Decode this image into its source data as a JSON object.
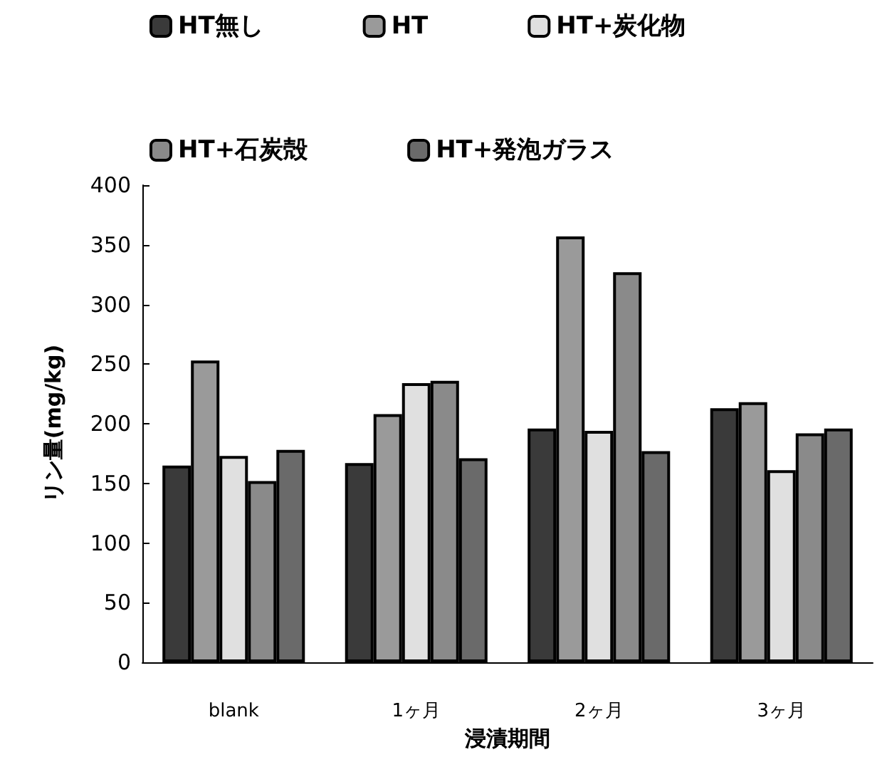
{
  "chart_data": {
    "type": "bar",
    "xlabel": "浸漬期間",
    "ylabel": "リン量(mg/kg)",
    "categories": [
      "blank",
      "1ヶ月",
      "2ヶ月",
      "3ヶ月"
    ],
    "series": [
      {
        "name": "HT無し",
        "color": "#3a3a3a",
        "values": [
          165,
          167,
          196,
          213
        ]
      },
      {
        "name": "HT",
        "color": "#9a9a9a",
        "values": [
          253,
          208,
          357,
          218
        ]
      },
      {
        "name": "HT+炭化物",
        "color": "#e0e0e0",
        "values": [
          173,
          234,
          194,
          161
        ]
      },
      {
        "name": "HT+石炭殻",
        "color": "#8a8a8a",
        "values": [
          152,
          236,
          327,
          192
        ]
      },
      {
        "name": "HT+発泡ガラス",
        "color": "#6a6a6a",
        "values": [
          178,
          171,
          177,
          196
        ]
      }
    ],
    "ylim": [
      0,
      400
    ],
    "yticks": [
      0,
      50,
      100,
      150,
      200,
      250,
      300,
      350,
      400
    ],
    "grid": false,
    "legend": "top"
  }
}
